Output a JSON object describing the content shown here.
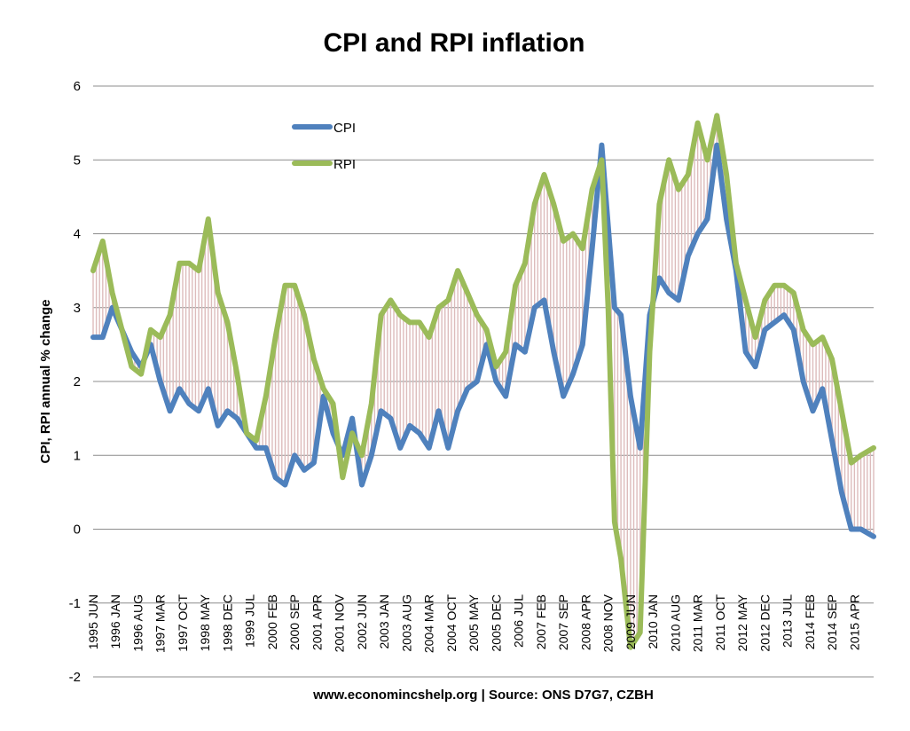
{
  "chart_data": {
    "type": "line",
    "title": "CPI and RPI inflation",
    "xlabel": "www.economincshelp.org | Source: ONS D7G7, CZBH",
    "ylabel": "CPI, RPI annual % change",
    "ylim": [
      -2,
      6
    ],
    "yticks": [
      "-2",
      "-1",
      "0",
      "1",
      "2",
      "3",
      "4",
      "5",
      "6"
    ],
    "grid": true,
    "legend": "inside-top-left",
    "x_start": "1995-06",
    "x_end": "2015-10",
    "tick_labels": [
      "1995 JUN",
      "1996 JAN",
      "1996 AUG",
      "1997 MAR",
      "1997 OCT",
      "1998 MAY",
      "1998 DEC",
      "1999 JUL",
      "2000 FEB",
      "2000 SEP",
      "2001 APR",
      "2001 NOV",
      "2002 JUN",
      "2003 JAN",
      "2003 AUG",
      "2004 MAR",
      "2004 OCT",
      "2005 MAY",
      "2005 DEC",
      "2006 JUL",
      "2007 FEB",
      "2007 SEP",
      "2008 APR",
      "2008 NOV",
      "2009 JUN",
      "2010 JAN",
      "2010 AUG",
      "2011 MAR",
      "2011 OCT",
      "2012 MAY",
      "2012 DEC",
      "2013 JUL",
      "2014 FEB",
      "2014 SEP",
      "2015 APR"
    ],
    "series": [
      {
        "name": "CPI",
        "color": "#4F81BD",
        "points": [
          [
            "1995-06",
            2.6
          ],
          [
            "1995-09",
            2.6
          ],
          [
            "1995-12",
            3.0
          ],
          [
            "1996-03",
            2.7
          ],
          [
            "1996-06",
            2.4
          ],
          [
            "1996-09",
            2.2
          ],
          [
            "1996-12",
            2.5
          ],
          [
            "1997-03",
            2.0
          ],
          [
            "1997-06",
            1.6
          ],
          [
            "1997-09",
            1.9
          ],
          [
            "1997-12",
            1.7
          ],
          [
            "1998-03",
            1.6
          ],
          [
            "1998-06",
            1.9
          ],
          [
            "1998-09",
            1.4
          ],
          [
            "1998-12",
            1.6
          ],
          [
            "1999-03",
            1.5
          ],
          [
            "1999-06",
            1.3
          ],
          [
            "1999-09",
            1.1
          ],
          [
            "1999-12",
            1.1
          ],
          [
            "2000-03",
            0.7
          ],
          [
            "2000-06",
            0.6
          ],
          [
            "2000-09",
            1.0
          ],
          [
            "2000-12",
            0.8
          ],
          [
            "2001-03",
            0.9
          ],
          [
            "2001-06",
            1.8
          ],
          [
            "2001-09",
            1.3
          ],
          [
            "2001-12",
            1.0
          ],
          [
            "2002-03",
            1.5
          ],
          [
            "2002-06",
            0.6
          ],
          [
            "2002-09",
            1.0
          ],
          [
            "2002-12",
            1.6
          ],
          [
            "2003-03",
            1.5
          ],
          [
            "2003-06",
            1.1
          ],
          [
            "2003-09",
            1.4
          ],
          [
            "2003-12",
            1.3
          ],
          [
            "2004-03",
            1.1
          ],
          [
            "2004-06",
            1.6
          ],
          [
            "2004-09",
            1.1
          ],
          [
            "2004-12",
            1.6
          ],
          [
            "2005-03",
            1.9
          ],
          [
            "2005-06",
            2.0
          ],
          [
            "2005-09",
            2.5
          ],
          [
            "2005-12",
            2.0
          ],
          [
            "2006-03",
            1.8
          ],
          [
            "2006-06",
            2.5
          ],
          [
            "2006-09",
            2.4
          ],
          [
            "2006-12",
            3.0
          ],
          [
            "2007-03",
            3.1
          ],
          [
            "2007-06",
            2.4
          ],
          [
            "2007-09",
            1.8
          ],
          [
            "2007-12",
            2.1
          ],
          [
            "2008-03",
            2.5
          ],
          [
            "2008-06",
            3.8
          ],
          [
            "2008-09",
            5.2
          ],
          [
            "2008-11",
            4.1
          ],
          [
            "2009-01",
            3.0
          ],
          [
            "2009-03",
            2.9
          ],
          [
            "2009-06",
            1.8
          ],
          [
            "2009-09",
            1.1
          ],
          [
            "2009-12",
            2.9
          ],
          [
            "2010-03",
            3.4
          ],
          [
            "2010-06",
            3.2
          ],
          [
            "2010-09",
            3.1
          ],
          [
            "2010-12",
            3.7
          ],
          [
            "2011-03",
            4.0
          ],
          [
            "2011-06",
            4.2
          ],
          [
            "2011-09",
            5.2
          ],
          [
            "2011-12",
            4.2
          ],
          [
            "2012-03",
            3.5
          ],
          [
            "2012-06",
            2.4
          ],
          [
            "2012-09",
            2.2
          ],
          [
            "2012-12",
            2.7
          ],
          [
            "2013-03",
            2.8
          ],
          [
            "2013-06",
            2.9
          ],
          [
            "2013-09",
            2.7
          ],
          [
            "2013-12",
            2.0
          ],
          [
            "2014-03",
            1.6
          ],
          [
            "2014-06",
            1.9
          ],
          [
            "2014-09",
            1.2
          ],
          [
            "2014-12",
            0.5
          ],
          [
            "2015-03",
            0.0
          ],
          [
            "2015-06",
            0.0
          ],
          [
            "2015-10",
            -0.1
          ]
        ]
      },
      {
        "name": "RPI",
        "color": "#9BBB59",
        "points": [
          [
            "1995-06",
            3.5
          ],
          [
            "1995-09",
            3.9
          ],
          [
            "1995-12",
            3.2
          ],
          [
            "1996-03",
            2.7
          ],
          [
            "1996-06",
            2.2
          ],
          [
            "1996-09",
            2.1
          ],
          [
            "1996-12",
            2.7
          ],
          [
            "1997-03",
            2.6
          ],
          [
            "1997-06",
            2.9
          ],
          [
            "1997-09",
            3.6
          ],
          [
            "1997-12",
            3.6
          ],
          [
            "1998-03",
            3.5
          ],
          [
            "1998-06",
            4.2
          ],
          [
            "1998-09",
            3.2
          ],
          [
            "1998-12",
            2.8
          ],
          [
            "1999-03",
            2.1
          ],
          [
            "1999-06",
            1.3
          ],
          [
            "1999-09",
            1.2
          ],
          [
            "1999-12",
            1.8
          ],
          [
            "2000-03",
            2.6
          ],
          [
            "2000-06",
            3.3
          ],
          [
            "2000-09",
            3.3
          ],
          [
            "2000-12",
            2.9
          ],
          [
            "2001-03",
            2.3
          ],
          [
            "2001-06",
            1.9
          ],
          [
            "2001-09",
            1.7
          ],
          [
            "2001-12",
            0.7
          ],
          [
            "2002-03",
            1.3
          ],
          [
            "2002-06",
            1.0
          ],
          [
            "2002-09",
            1.7
          ],
          [
            "2002-12",
            2.9
          ],
          [
            "2003-03",
            3.1
          ],
          [
            "2003-06",
            2.9
          ],
          [
            "2003-09",
            2.8
          ],
          [
            "2003-12",
            2.8
          ],
          [
            "2004-03",
            2.6
          ],
          [
            "2004-06",
            3.0
          ],
          [
            "2004-09",
            3.1
          ],
          [
            "2004-12",
            3.5
          ],
          [
            "2005-03",
            3.2
          ],
          [
            "2005-06",
            2.9
          ],
          [
            "2005-09",
            2.7
          ],
          [
            "2005-12",
            2.2
          ],
          [
            "2006-03",
            2.4
          ],
          [
            "2006-06",
            3.3
          ],
          [
            "2006-09",
            3.6
          ],
          [
            "2006-12",
            4.4
          ],
          [
            "2007-03",
            4.8
          ],
          [
            "2007-06",
            4.4
          ],
          [
            "2007-09",
            3.9
          ],
          [
            "2007-12",
            4.0
          ],
          [
            "2008-03",
            3.8
          ],
          [
            "2008-06",
            4.6
          ],
          [
            "2008-09",
            5.0
          ],
          [
            "2008-11",
            3.0
          ],
          [
            "2009-01",
            0.1
          ],
          [
            "2009-03",
            -0.4
          ],
          [
            "2009-06",
            -1.6
          ],
          [
            "2009-09",
            -1.4
          ],
          [
            "2009-12",
            2.4
          ],
          [
            "2010-03",
            4.4
          ],
          [
            "2010-06",
            5.0
          ],
          [
            "2010-09",
            4.6
          ],
          [
            "2010-12",
            4.8
          ],
          [
            "2011-03",
            5.5
          ],
          [
            "2011-06",
            5.0
          ],
          [
            "2011-09",
            5.6
          ],
          [
            "2011-12",
            4.8
          ],
          [
            "2012-03",
            3.6
          ],
          [
            "2012-06",
            3.1
          ],
          [
            "2012-09",
            2.6
          ],
          [
            "2012-12",
            3.1
          ],
          [
            "2013-03",
            3.3
          ],
          [
            "2013-06",
            3.3
          ],
          [
            "2013-09",
            3.2
          ],
          [
            "2013-12",
            2.7
          ],
          [
            "2014-03",
            2.5
          ],
          [
            "2014-06",
            2.6
          ],
          [
            "2014-09",
            2.3
          ],
          [
            "2014-12",
            1.6
          ],
          [
            "2015-03",
            0.9
          ],
          [
            "2015-06",
            1.0
          ],
          [
            "2015-10",
            1.1
          ]
        ]
      }
    ]
  }
}
